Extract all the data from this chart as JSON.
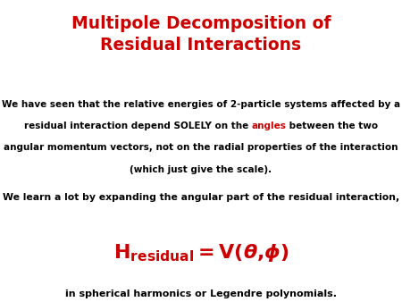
{
  "title_line1": "Multipole Decomposition of",
  "title_line2": "Residual Interactions",
  "title_color": "#cc0000",
  "title_fontsize": 13.5,
  "body_color": "#000000",
  "accent_color": "#cc0000",
  "background_color": "#ffffff",
  "line1": "We have seen that the relative energies of 2-particle systems affected by a",
  "line2_black1": "residual interaction depend SOLELY on the ",
  "line2_red": "angles",
  "line2_black2": " between the two",
  "line3": "angular momentum vectors, not on the radial properties of the interaction",
  "line4": "(which just give the scale).",
  "para2": "We learn a lot by expanding the angular part of the residual interaction,",
  "footnote": "in spherical harmonics or Legendre polynomials.",
  "body_fontsize": 7.5,
  "para2_fontsize": 7.8,
  "formula_fontsize": 16,
  "footnote_fontsize": 8.0
}
